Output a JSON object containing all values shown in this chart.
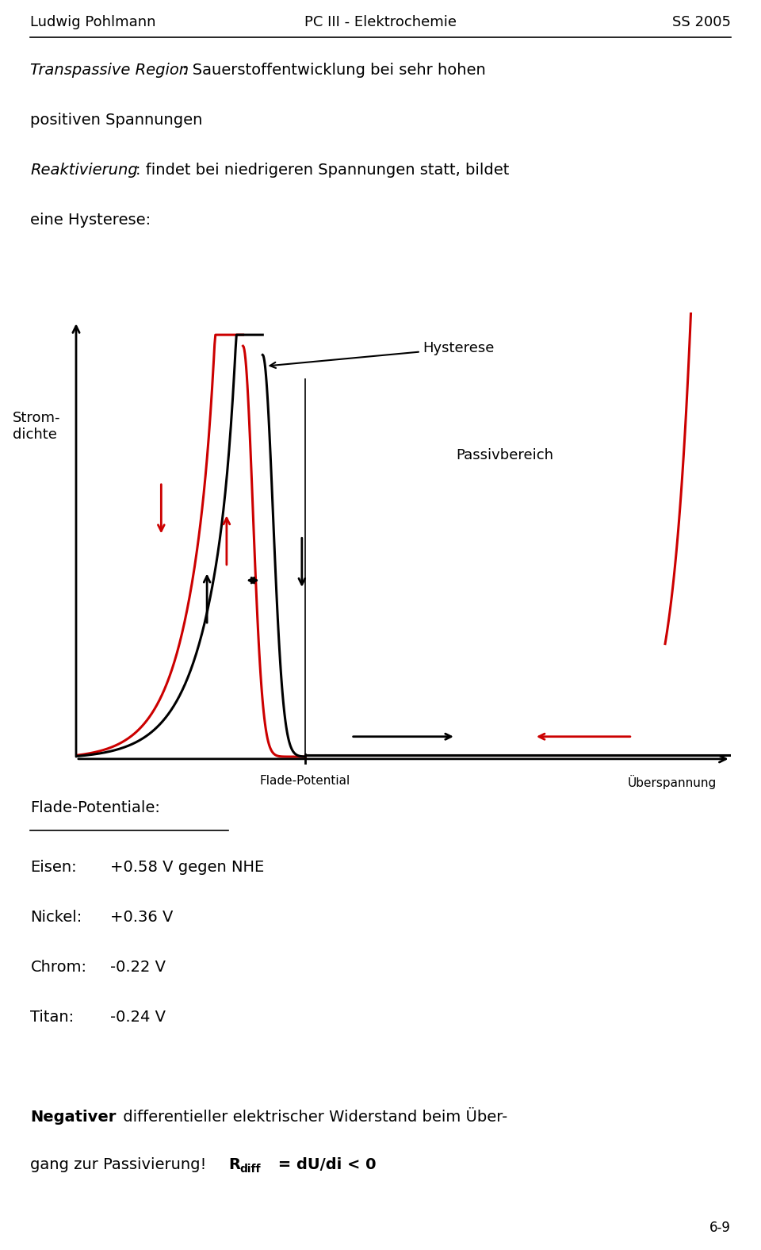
{
  "header_left": "Ludwig Pohlmann",
  "header_center": "PC III - Elektrochemie",
  "header_right": "SS 2005",
  "footer_right": "6-9",
  "ylabel": "Strom-\ndichte",
  "label_hysterese": "Hysterese",
  "label_passivbereich": "Passivbereich",
  "label_flade": "Flade-Potential",
  "label_ueberspannung": "Überspannung",
  "flade_potentiale_title": "Flade-Potentiale:",
  "flade_data": [
    {
      "metal": "Eisen:",
      "value": "+0.58 V gegen NHE"
    },
    {
      "metal": "Nickel:",
      "value": "+0.36 V"
    },
    {
      "metal": "Chrom:",
      "value": "-0.22 V"
    },
    {
      "metal": "Titan:",
      "value": "-0.24 V"
    }
  ],
  "bottom_text_bold": "Negativer",
  "bottom_text_rest": " differentieller elektrischer Widerstand beim Über-",
  "bottom_line2": "gang zur Passivierung!",
  "curve_color_red": "#cc0000",
  "curve_color_black": "#000000",
  "axis_color": "#000000",
  "background_color": "#ffffff",
  "text_color": "#000000",
  "font_size_header": 13,
  "font_size_body": 14,
  "font_size_chart_label": 13
}
